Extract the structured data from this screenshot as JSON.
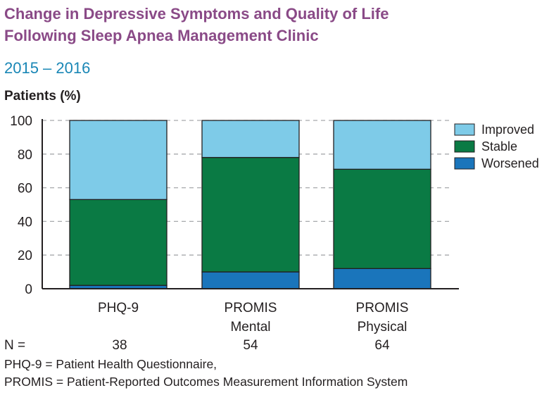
{
  "title_lines": [
    "Change in Depressive Symptoms and Quality of Life",
    "Following Sleep Apnea Management Clinic"
  ],
  "subtitle": "2015 – 2016",
  "ylabel": "Patients (%)",
  "n_row": {
    "label": "N =",
    "values": [
      "38",
      "54",
      "64"
    ]
  },
  "footnotes": [
    "PHQ-9 = Patient Health Questionnaire,",
    "PROMIS = Patient-Reported Outcomes Measurement Information System"
  ],
  "chart_data": {
    "type": "bar",
    "stacked": true,
    "categories": [
      [
        "PHQ-9"
      ],
      [
        "PROMIS",
        "Mental"
      ],
      [
        "PROMIS",
        "Physical"
      ]
    ],
    "series": [
      {
        "name": "Worsened",
        "color": "#1a75bb",
        "values": [
          2,
          10,
          12
        ]
      },
      {
        "name": "Stable",
        "color": "#0a7a44",
        "values": [
          51,
          68,
          59
        ]
      },
      {
        "name": "Improved",
        "color": "#7ecbe8",
        "values": [
          47,
          22,
          29
        ]
      }
    ],
    "legend_order": [
      "Improved",
      "Stable",
      "Worsened"
    ],
    "ylim": [
      0,
      100
    ],
    "yticks": [
      "0",
      "20",
      "40",
      "60",
      "80",
      "100"
    ],
    "grid": true,
    "legend_position": "right"
  }
}
